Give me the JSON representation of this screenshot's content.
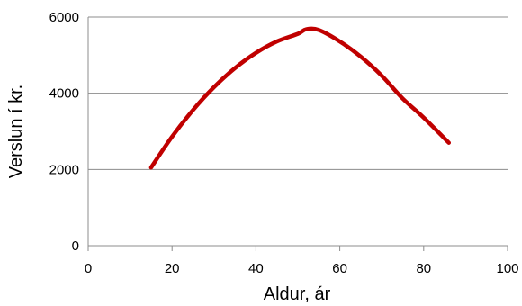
{
  "chart_data": {
    "type": "line",
    "title": "",
    "xlabel": "Aldur, ár",
    "ylabel": "Verslun í kr.",
    "xlim": [
      0,
      100
    ],
    "ylim": [
      0,
      6000
    ],
    "x_ticks": [
      0,
      20,
      40,
      60,
      80,
      100
    ],
    "y_ticks": [
      0,
      2000,
      4000,
      6000
    ],
    "grid": "horizontal",
    "legend": "none",
    "series": [
      {
        "color": "#c00000",
        "x": [
          15,
          20,
          25,
          30,
          35,
          40,
          45,
          50,
          52,
          55,
          60,
          65,
          70,
          75,
          80,
          86
        ],
        "y": [
          2050,
          2860,
          3560,
          4160,
          4660,
          5060,
          5360,
          5560,
          5680,
          5660,
          5360,
          4960,
          4460,
          3860,
          3360,
          2700
        ]
      }
    ]
  }
}
